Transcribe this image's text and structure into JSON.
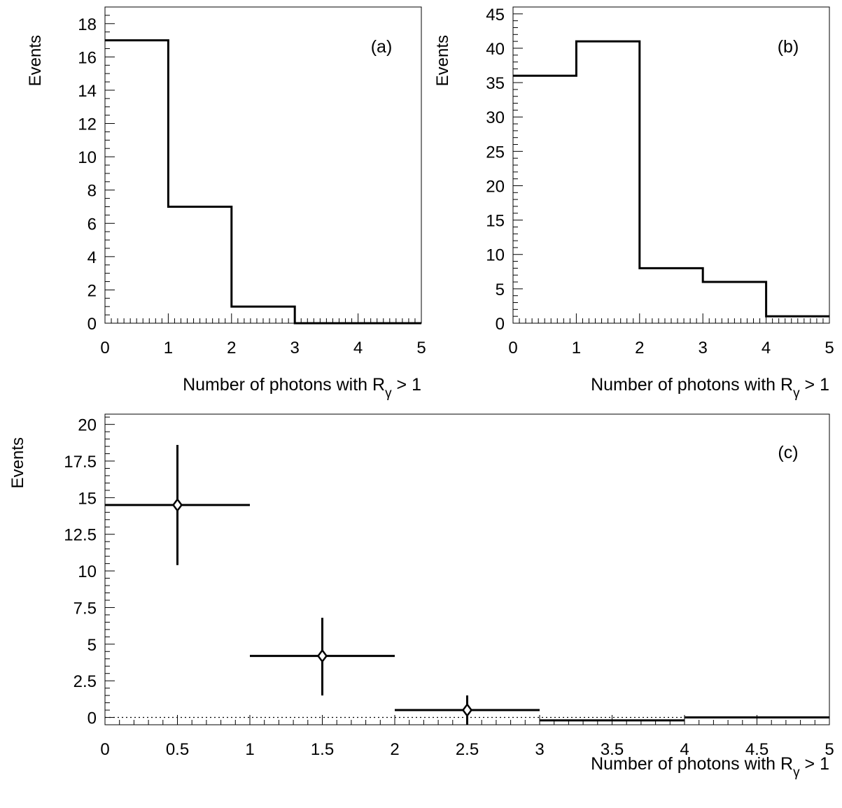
{
  "chart_data": [
    {
      "panel": "(a)",
      "type": "histogram",
      "ylabel": "Events",
      "xlabel_main": "Number of photons with R",
      "xlabel_sub": "γ",
      "xlabel_tail": " > 1",
      "xlim": [
        0,
        5
      ],
      "ylim": [
        0,
        19
      ],
      "xticks": [
        0,
        1,
        2,
        3,
        4,
        5
      ],
      "yticks": [
        0,
        2,
        4,
        6,
        8,
        10,
        12,
        14,
        16,
        18
      ],
      "bin_edges": [
        0,
        1,
        2,
        3,
        4,
        5
      ],
      "values": [
        17,
        7,
        1,
        0,
        0
      ]
    },
    {
      "panel": "(b)",
      "type": "histogram",
      "ylabel": "Events",
      "xlabel_main": "Number of photons with R",
      "xlabel_sub": "γ",
      "xlabel_tail": " > 1",
      "xlim": [
        0,
        5
      ],
      "ylim": [
        0,
        46
      ],
      "xticks": [
        0,
        1,
        2,
        3,
        4,
        5
      ],
      "yticks": [
        0,
        5,
        10,
        15,
        20,
        25,
        30,
        35,
        40,
        45
      ],
      "bin_edges": [
        0,
        1,
        2,
        3,
        4,
        5
      ],
      "values": [
        36,
        41,
        8,
        6,
        1
      ]
    },
    {
      "panel": "(c)",
      "type": "scatter",
      "ylabel": "Events",
      "xlabel_main": "Number of photons with R",
      "xlabel_sub": "γ",
      "xlabel_tail": " > 1",
      "xlim": [
        0,
        5
      ],
      "ylim": [
        -0.5,
        20.7
      ],
      "xticks": [
        0,
        0.5,
        1,
        1.5,
        2,
        2.5,
        3,
        3.5,
        4,
        4.5,
        5
      ],
      "xtick_labels": [
        "0",
        "0.5",
        "1",
        "1.5",
        "2",
        "2.5",
        "3",
        "3.5",
        "4",
        "4.5",
        "5"
      ],
      "yticks": [
        0,
        2.5,
        5,
        7.5,
        10,
        12.5,
        15,
        17.5,
        20
      ],
      "ytick_labels": [
        "0",
        "2.5",
        "5",
        "7.5",
        "10",
        "12.5",
        "15",
        "17.5",
        "20"
      ],
      "zero_line": "dotted",
      "points": [
        {
          "x": 0.5,
          "y": 14.5,
          "xerr": 0.5,
          "yerr": [
            4.1,
            4.1
          ],
          "marker": "diamond"
        },
        {
          "x": 1.5,
          "y": 4.2,
          "xerr": 0.5,
          "yerr": [
            2.7,
            2.6
          ],
          "marker": "diamond"
        },
        {
          "x": 2.5,
          "y": 0.5,
          "xerr": 0.5,
          "yerr": [
            1.0,
            1.0
          ],
          "marker": "diamond"
        },
        {
          "x": 3.5,
          "y": -0.2,
          "xerr": 0.5,
          "yerr": [
            0,
            0
          ],
          "marker": "none"
        },
        {
          "x": 4.5,
          "y": 0.0,
          "xerr": 0.5,
          "yerr": [
            0,
            0
          ],
          "marker": "none"
        }
      ]
    }
  ]
}
